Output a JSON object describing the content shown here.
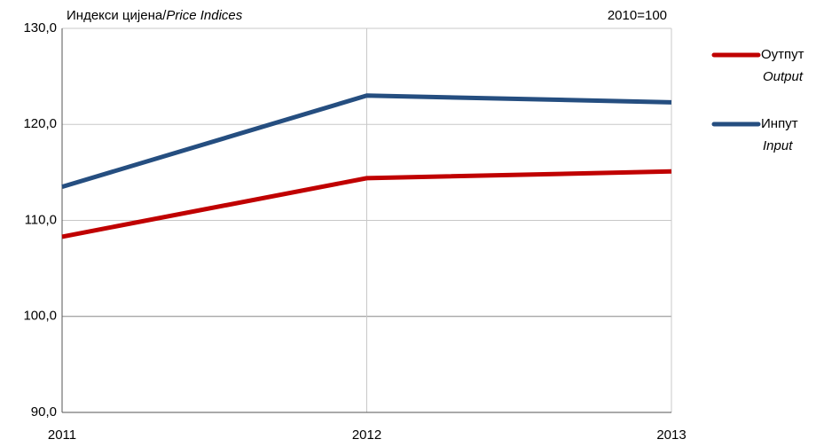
{
  "chart_data": {
    "type": "line",
    "title_parts": [
      "Индекси цијена/",
      "Price Indices"
    ],
    "annotation": "2010=100",
    "categories": [
      "2011",
      "2012",
      "2013"
    ],
    "series": [
      {
        "name": "Оутпут",
        "name_en": "Output",
        "color": "#c00000",
        "values": [
          108.3,
          114.4,
          115.1
        ]
      },
      {
        "name": "Инпут",
        "name_en": "Input",
        "color": "#254e80",
        "values": [
          113.5,
          123.0,
          122.3
        ]
      }
    ],
    "ylim": [
      90,
      130
    ],
    "yticks": [
      {
        "value": 90,
        "label": "90,0"
      },
      {
        "value": 100,
        "label": "100,0"
      },
      {
        "value": 110,
        "label": "110,0"
      },
      {
        "value": 120,
        "label": "120,0"
      },
      {
        "value": 130,
        "label": "130,0"
      }
    ],
    "grid": true,
    "legend": "right"
  }
}
